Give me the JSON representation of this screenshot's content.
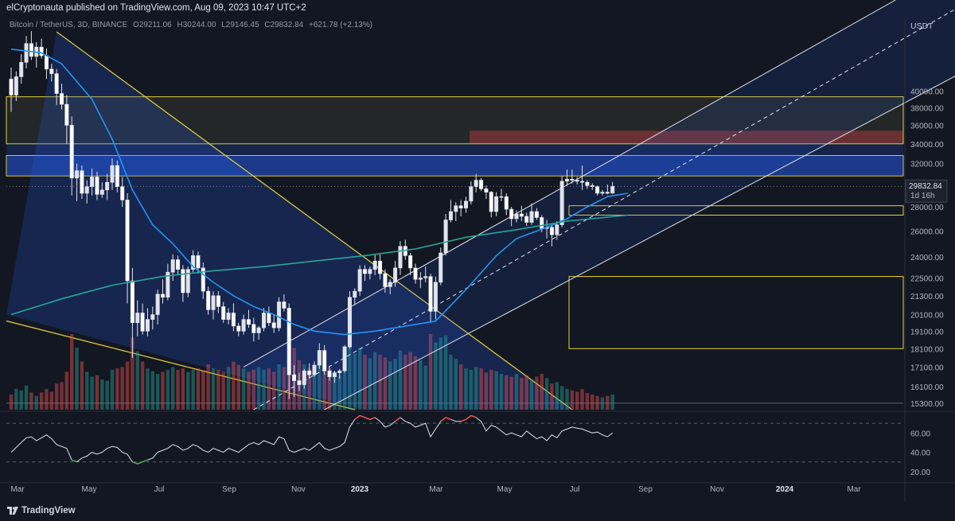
{
  "header": {
    "publisher_text": "elCryptonauta published on TradingView.com, Aug 09, 2023 10:47 UTC+2"
  },
  "legend": {
    "symbol": "Bitcoin / TetherUS, 3D, BINANCE",
    "open": "O29211.06",
    "high": "H30244.00",
    "low": "L29146.45",
    "close": "C29832.84",
    "change": "+621.78 (+2.13%)"
  },
  "footer": {
    "brand": "TradingView"
  },
  "colors": {
    "background": "#131722",
    "candle": "#e0e3eb",
    "ma_fast": "#2196f3",
    "ma_slow": "#26a69a",
    "trendline": "#e6d23c",
    "channel": "#e0e3eb",
    "zone_resistance": "#f23645",
    "zone_blue": "#2962ff",
    "volume_up": "#26a69a",
    "volume_down": "#ef5350",
    "rsi_line": "#e0e3eb"
  },
  "chart_data": {
    "type": "candlestick",
    "price_axis_unit": "USDT",
    "y_ticks": [
      40000,
      38000,
      36000,
      34000,
      32000,
      28000,
      26000,
      24000,
      22500,
      21300,
      20100,
      19100,
      18100,
      17100,
      16100,
      15300
    ],
    "last_price": "29832.84",
    "countdown": "1d 16h",
    "x_ticks": [
      "Mar",
      "May",
      "Jul",
      "Sep",
      "Nov",
      "2023",
      "Mar",
      "May",
      "Jul",
      "Sep",
      "Nov",
      "2024",
      "Mar"
    ],
    "rsi_ticks": [
      "60.00",
      "40.00",
      "20.00"
    ],
    "rsi_levels": [
      70,
      30
    ],
    "series": [
      {
        "type": "candles",
        "ohlc": [
          [
            41500,
            43000,
            37500,
            39500
          ],
          [
            39500,
            42500,
            38800,
            41800
          ],
          [
            41800,
            44800,
            40900,
            43700
          ],
          [
            43700,
            47400,
            42900,
            46300
          ],
          [
            46300,
            48100,
            44000,
            44500
          ],
          [
            44500,
            46500,
            43000,
            45800
          ],
          [
            45800,
            47000,
            44200,
            44600
          ],
          [
            44600,
            45600,
            41500,
            42800
          ],
          [
            42800,
            43500,
            41200,
            42200
          ],
          [
            42200,
            42800,
            38300,
            39700
          ],
          [
            39700,
            40900,
            37800,
            38400
          ],
          [
            38400,
            39500,
            34000,
            36000
          ],
          [
            36000,
            37000,
            29000,
            30600
          ],
          [
            30600,
            32000,
            28500,
            31300
          ],
          [
            31300,
            31800,
            28700,
            29200
          ],
          [
            29200,
            30400,
            28300,
            29800
          ],
          [
            29800,
            31500,
            29000,
            30700
          ],
          [
            30700,
            31200,
            28600,
            29100
          ],
          [
            29100,
            30200,
            28800,
            29500
          ],
          [
            29500,
            31000,
            28600,
            30200
          ],
          [
            30200,
            32500,
            29500,
            31800
          ],
          [
            31800,
            32300,
            29300,
            29800
          ],
          [
            29800,
            30700,
            28000,
            28600
          ],
          [
            28600,
            29200,
            20800,
            22300
          ],
          [
            22300,
            23200,
            17600,
            19600
          ],
          [
            19600,
            21000,
            18800,
            20200
          ],
          [
            20200,
            20800,
            18900,
            19100
          ],
          [
            19100,
            20500,
            18800,
            19800
          ],
          [
            19800,
            20600,
            19200,
            20100
          ],
          [
            20100,
            21700,
            19500,
            21400
          ],
          [
            21400,
            22400,
            20800,
            21200
          ],
          [
            21200,
            23500,
            21000,
            22900
          ],
          [
            22900,
            24200,
            22300,
            23800
          ],
          [
            23800,
            24100,
            22700,
            23100
          ],
          [
            23100,
            23400,
            20900,
            21500
          ],
          [
            21500,
            23300,
            21200,
            23100
          ],
          [
            23100,
            24500,
            22900,
            24100
          ],
          [
            24100,
            24400,
            22800,
            23200
          ],
          [
            23200,
            23600,
            21100,
            21600
          ],
          [
            21600,
            21900,
            20100,
            20400
          ],
          [
            20400,
            21600,
            19800,
            21300
          ],
          [
            21300,
            21600,
            20200,
            20600
          ],
          [
            20600,
            20900,
            19600,
            19800
          ],
          [
            19800,
            20500,
            19500,
            20200
          ],
          [
            20200,
            20800,
            19100,
            19400
          ],
          [
            19400,
            19600,
            18800,
            19100
          ],
          [
            19100,
            20100,
            18900,
            19800
          ],
          [
            19800,
            20400,
            19300,
            19500
          ],
          [
            19500,
            19900,
            18500,
            19000
          ],
          [
            19000,
            19400,
            18600,
            19300
          ],
          [
            19300,
            20500,
            19100,
            20200
          ],
          [
            20200,
            20600,
            19400,
            19600
          ],
          [
            19600,
            20100,
            19000,
            19300
          ],
          [
            19300,
            21200,
            19100,
            20900
          ],
          [
            20900,
            21400,
            20300,
            20500
          ],
          [
            20500,
            20800,
            15500,
            16700
          ],
          [
            16700,
            17200,
            15600,
            16400
          ],
          [
            16400,
            16800,
            15900,
            16200
          ],
          [
            16200,
            17000,
            16000,
            16900
          ],
          [
            16900,
            17300,
            16500,
            16700
          ],
          [
            16700,
            17400,
            16600,
            17200
          ],
          [
            17200,
            18400,
            17000,
            18000
          ],
          [
            18000,
            18300,
            16700,
            16900
          ],
          [
            16900,
            17100,
            16400,
            16600
          ],
          [
            16600,
            16900,
            16300,
            16800
          ],
          [
            16800,
            17000,
            16500,
            16900
          ],
          [
            16900,
            18300,
            16800,
            18200
          ],
          [
            18200,
            21600,
            18100,
            21200
          ],
          [
            21200,
            21800,
            20700,
            21600
          ],
          [
            21600,
            23400,
            21300,
            23100
          ],
          [
            23100,
            23400,
            22300,
            22800
          ],
          [
            22800,
            23300,
            22400,
            23100
          ],
          [
            23100,
            24200,
            22700,
            23700
          ],
          [
            23700,
            24200,
            22400,
            22800
          ],
          [
            22800,
            23100,
            21500,
            21900
          ],
          [
            21900,
            22400,
            21400,
            22200
          ],
          [
            22200,
            23700,
            21900,
            23200
          ],
          [
            23200,
            25200,
            22700,
            24800
          ],
          [
            24800,
            25300,
            23800,
            24100
          ],
          [
            24100,
            24300,
            22700,
            23200
          ],
          [
            23200,
            23500,
            22100,
            22400
          ],
          [
            22400,
            22900,
            21800,
            22500
          ],
          [
            22500,
            23300,
            22200,
            22600
          ],
          [
            22600,
            22800,
            19600,
            20300
          ],
          [
            20300,
            22600,
            19800,
            22200
          ],
          [
            22200,
            24700,
            22000,
            24300
          ],
          [
            24300,
            27400,
            24100,
            26900
          ],
          [
            26900,
            28600,
            26700,
            27600
          ],
          [
            27600,
            28400,
            26800,
            28100
          ],
          [
            28100,
            28600,
            27200,
            27900
          ],
          [
            27900,
            28900,
            27500,
            28500
          ],
          [
            28500,
            30300,
            28200,
            29800
          ],
          [
            29800,
            31000,
            29300,
            30400
          ],
          [
            30400,
            30600,
            29400,
            29600
          ],
          [
            29600,
            29900,
            28700,
            29300
          ],
          [
            29300,
            29400,
            27100,
            27600
          ],
          [
            27600,
            29300,
            27200,
            28900
          ],
          [
            28900,
            29600,
            28500,
            28900
          ],
          [
            28900,
            29200,
            27300,
            27800
          ],
          [
            27800,
            28000,
            26400,
            27000
          ],
          [
            27000,
            27700,
            26700,
            27400
          ],
          [
            27400,
            28100,
            26800,
            27200
          ],
          [
            27200,
            27500,
            26400,
            26700
          ],
          [
            26700,
            28300,
            26500,
            27600
          ],
          [
            27600,
            27900,
            26900,
            27100
          ],
          [
            27100,
            27300,
            25900,
            26200
          ],
          [
            26200,
            26900,
            25400,
            26300
          ],
          [
            26300,
            26600,
            24800,
            25700
          ],
          [
            25700,
            26800,
            25300,
            26500
          ],
          [
            26500,
            30800,
            26300,
            30300
          ],
          [
            30300,
            31400,
            29900,
            30500
          ],
          [
            30500,
            31400,
            30100,
            30400
          ],
          [
            30400,
            30700,
            30000,
            30300
          ],
          [
            30300,
            31800,
            29500,
            30200
          ],
          [
            30200,
            30400,
            29600,
            29900
          ],
          [
            29900,
            30100,
            29500,
            29800
          ],
          [
            29800,
            29900,
            29000,
            29200
          ],
          [
            29200,
            29500,
            29000,
            29300
          ],
          [
            29300,
            30000,
            29100,
            29200
          ],
          [
            29211,
            30244,
            29146,
            29833
          ]
        ]
      },
      {
        "name": "",
        "type": "ma_fast",
        "points": [
          [
            0,
            45500
          ],
          [
            6,
            45000
          ],
          [
            10,
            43500
          ],
          [
            16,
            39000
          ],
          [
            20,
            34500
          ],
          [
            24,
            29500
          ],
          [
            28,
            26500
          ],
          [
            32,
            25000
          ],
          [
            36,
            23300
          ],
          [
            40,
            22200
          ],
          [
            44,
            21300
          ],
          [
            48,
            20600
          ],
          [
            52,
            20100
          ],
          [
            56,
            19500
          ],
          [
            60,
            19100
          ],
          [
            66,
            18900
          ],
          [
            72,
            19100
          ],
          [
            78,
            19400
          ],
          [
            84,
            19700
          ],
          [
            90,
            21700
          ],
          [
            96,
            24100
          ],
          [
            100,
            25400
          ],
          [
            106,
            26300
          ],
          [
            110,
            27000
          ],
          [
            114,
            28000
          ],
          [
            118,
            28900
          ],
          [
            122,
            29200
          ]
        ]
      },
      {
        "name": "",
        "type": "ma_slow",
        "points": [
          [
            0,
            20100
          ],
          [
            10,
            21100
          ],
          [
            20,
            22000
          ],
          [
            30,
            22600
          ],
          [
            40,
            23000
          ],
          [
            50,
            23300
          ],
          [
            60,
            23700
          ],
          [
            70,
            24100
          ],
          [
            80,
            24600
          ],
          [
            90,
            25500
          ],
          [
            100,
            26100
          ],
          [
            110,
            26800
          ],
          [
            122,
            27300
          ]
        ]
      }
    ],
    "volume": [
      22,
      30,
      28,
      35,
      25,
      20,
      25,
      30,
      26,
      38,
      40,
      55,
      110,
      90,
      70,
      55,
      48,
      50,
      44,
      42,
      58,
      60,
      62,
      70,
      105,
      85,
      70,
      60,
      56,
      52,
      55,
      58,
      62,
      58,
      60,
      55,
      58,
      60,
      56,
      66,
      60,
      58,
      55,
      62,
      70,
      65,
      60,
      55,
      58,
      62,
      58,
      60,
      55,
      66,
      62,
      105,
      90,
      72,
      66,
      60,
      58,
      64,
      70,
      60,
      56,
      50,
      54,
      100,
      82,
      90,
      80,
      75,
      84,
      80,
      76,
      70,
      74,
      86,
      80,
      84,
      78,
      72,
      64,
      110,
      98,
      105,
      108,
      80,
      74,
      66,
      60,
      58,
      62,
      60,
      54,
      58,
      56,
      52,
      50,
      48,
      52,
      46,
      50,
      44,
      48,
      52,
      46,
      38,
      40,
      34,
      30,
      28,
      26,
      30,
      24,
      22,
      20,
      18,
      20,
      22
    ],
    "rsi": [
      40,
      45,
      50,
      55,
      56,
      52,
      55,
      58,
      54,
      48,
      46,
      44,
      32,
      30,
      34,
      36,
      40,
      38,
      40,
      44,
      46,
      45,
      40,
      38,
      30,
      28,
      30,
      32,
      34,
      40,
      42,
      44,
      48,
      46,
      42,
      44,
      48,
      46,
      42,
      40,
      44,
      42,
      40,
      44,
      42,
      40,
      44,
      48,
      50,
      48,
      52,
      50,
      48,
      56,
      54,
      42,
      40,
      42,
      44,
      42,
      46,
      50,
      44,
      42,
      44,
      46,
      50,
      66,
      74,
      78,
      76,
      74,
      76,
      72,
      66,
      68,
      72,
      76,
      72,
      70,
      66,
      68,
      70,
      56,
      64,
      72,
      76,
      74,
      72,
      72,
      74,
      78,
      76,
      72,
      62,
      68,
      66,
      62,
      58,
      60,
      58,
      56,
      62,
      58,
      54,
      56,
      52,
      58,
      55,
      62,
      64,
      66,
      65,
      64,
      62,
      60,
      61,
      58,
      56,
      60
    ],
    "annotations": [
      {
        "type": "zone",
        "from": 34000,
        "to": 35400,
        "label": ""
      },
      {
        "type": "zone",
        "from": 30800,
        "to": 32800,
        "label": ""
      },
      {
        "type": "zone",
        "from": 27300,
        "to": 28100,
        "label": ""
      },
      {
        "type": "zone",
        "from": 18100,
        "to": 22600,
        "label": ""
      },
      {
        "type": "channel",
        "label": ""
      },
      {
        "type": "wedge",
        "label": ""
      }
    ],
    "grid": false
  }
}
